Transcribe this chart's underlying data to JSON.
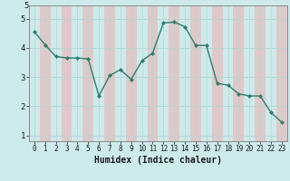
{
  "x": [
    0,
    1,
    2,
    3,
    4,
    5,
    6,
    7,
    8,
    9,
    10,
    11,
    12,
    13,
    14,
    15,
    16,
    17,
    18,
    19,
    20,
    21,
    22,
    23
  ],
  "y": [
    4.55,
    4.1,
    3.7,
    3.65,
    3.65,
    3.62,
    2.35,
    3.05,
    3.25,
    2.92,
    3.55,
    3.82,
    4.85,
    4.88,
    4.72,
    4.08,
    4.08,
    2.78,
    2.72,
    2.42,
    2.35,
    2.35,
    1.78,
    1.45
  ],
  "line_color": "#2e7d6e",
  "marker": "D",
  "marker_size": 2.0,
  "bg_color": "#cdeaea",
  "grid_color_h": "#b8d4d4",
  "grid_color_v_pink": "#dfc8c8",
  "grid_color_v_teal": "#cdeaea",
  "xlabel": "Humidex (Indice chaleur)",
  "xlim": [
    -0.5,
    23.5
  ],
  "ylim": [
    0.8,
    5.45
  ],
  "yticks": [
    1,
    2,
    3,
    4,
    5
  ],
  "xticks": [
    0,
    1,
    2,
    3,
    4,
    5,
    6,
    7,
    8,
    9,
    10,
    11,
    12,
    13,
    14,
    15,
    16,
    17,
    18,
    19,
    20,
    21,
    22,
    23
  ],
  "xlabel_fontsize": 7,
  "tick_fontsize": 6
}
